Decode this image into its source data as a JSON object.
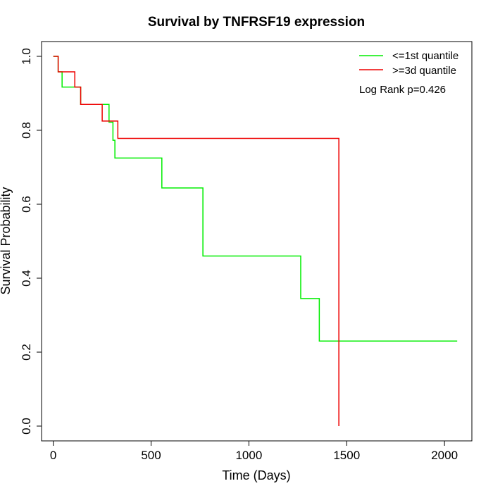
{
  "chart_data": {
    "type": "line",
    "subtype": "kaplan-meier step curve",
    "title": "Survival by TNFRSF19 expression",
    "xlabel": "Time (Days)",
    "ylabel": "Survival Probability",
    "xlim": [
      -60,
      2140
    ],
    "ylim": [
      -0.04,
      1.04
    ],
    "xticks": [
      0,
      500,
      1000,
      1500,
      2000
    ],
    "xtick_labels": [
      "0",
      "500",
      "1000",
      "1500",
      "2000"
    ],
    "yticks": [
      0.0,
      0.2,
      0.4,
      0.6,
      0.8,
      1.0
    ],
    "ytick_labels": [
      "0.0",
      "0.2",
      "0.4",
      "0.6",
      "0.8",
      "1.0"
    ],
    "grid": false,
    "legend_position": "top-right",
    "annotation": "Log Rank p=0.426",
    "series": [
      {
        "name": "<=1st quantile",
        "color": "#00ee00",
        "steps": [
          [
            0,
            1.0
          ],
          [
            25,
            0.958
          ],
          [
            45,
            0.917
          ],
          [
            140,
            0.87
          ],
          [
            285,
            0.822
          ],
          [
            305,
            0.773
          ],
          [
            315,
            0.725
          ],
          [
            555,
            0.644
          ],
          [
            765,
            0.46
          ],
          [
            1265,
            0.345
          ],
          [
            1360,
            0.23
          ],
          [
            2065,
            0.23
          ]
        ]
      },
      {
        "name": ">=3d quantile",
        "color": "#ee0000",
        "steps": [
          [
            0,
            1.0
          ],
          [
            25,
            0.958
          ],
          [
            110,
            0.917
          ],
          [
            140,
            0.87
          ],
          [
            250,
            0.825
          ],
          [
            330,
            0.778
          ],
          [
            1460,
            0.0
          ]
        ]
      }
    ]
  }
}
